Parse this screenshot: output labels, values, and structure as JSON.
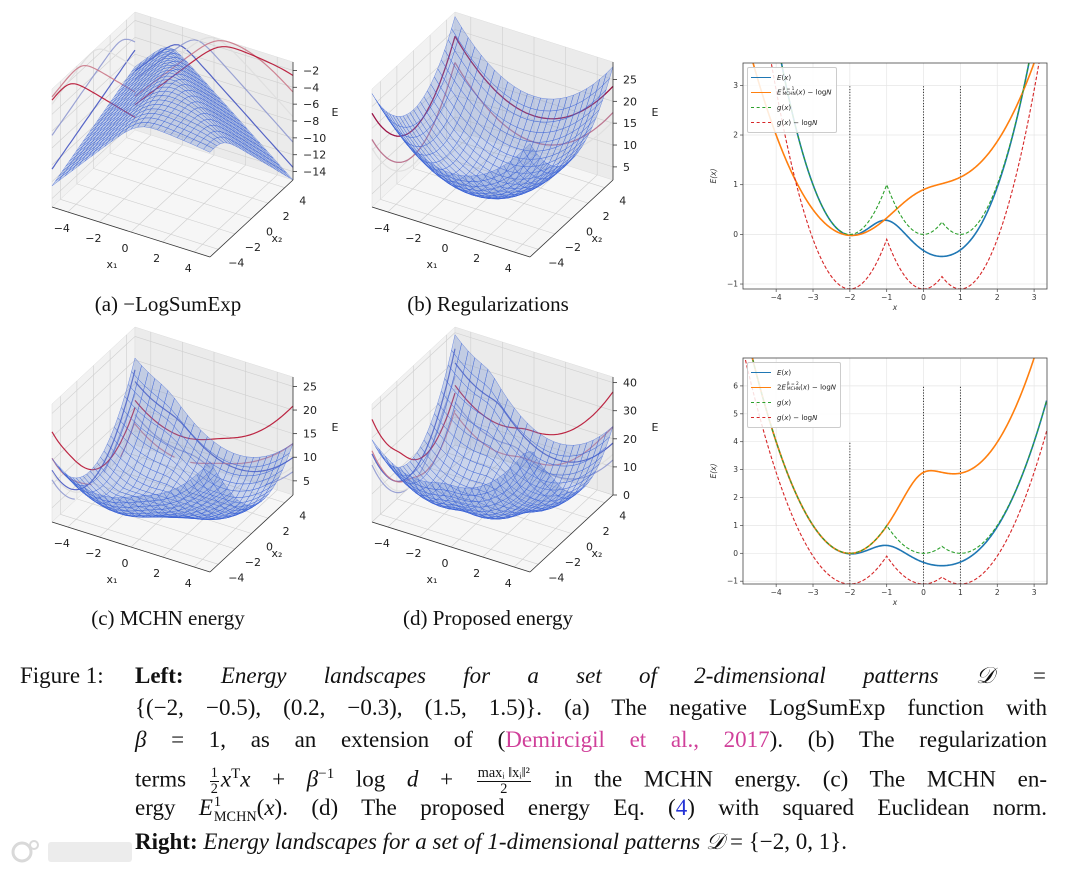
{
  "subplots": [
    {
      "label": "(a) −LogSumExp"
    },
    {
      "label": "(b) Regularizations"
    },
    {
      "label": "(c) MCHN energy"
    },
    {
      "label": "(d) Proposed energy"
    }
  ],
  "chart_data": [
    {
      "type": "surface3d",
      "id": "a",
      "title": "(a) −LogSumExp",
      "function": "neg_logsumexp",
      "patterns": [
        [
          -2,
          -0.5
        ],
        [
          0.2,
          -0.3
        ],
        [
          1.5,
          1.5
        ]
      ],
      "beta": 1,
      "xlabel": "x₁",
      "ylabel": "x₂",
      "zlabel": "E",
      "xlim": [
        -5,
        5
      ],
      "ylim": [
        -5,
        5
      ],
      "zlim": [
        -15,
        -1
      ],
      "xticks": [
        "−4",
        "−2",
        "0",
        "2",
        "4"
      ],
      "xtick_values": [
        -4,
        -2,
        0,
        2,
        4
      ],
      "yticks": [
        "−4",
        "−2",
        "0",
        "2",
        "4"
      ],
      "ytick_values": [
        -4,
        -2,
        0,
        2,
        4
      ],
      "zticks": [
        "−14",
        "−12",
        "−10",
        "−8",
        "−6",
        "−4",
        "−2"
      ],
      "ztick_values": [
        -14,
        -12,
        -10,
        -8,
        -6,
        -4,
        -2
      ]
    },
    {
      "type": "surface3d",
      "id": "b",
      "title": "(b) Regularizations",
      "function": "regularization",
      "patterns": [
        [
          -2,
          -0.5
        ],
        [
          0.2,
          -0.3
        ],
        [
          1.5,
          1.5
        ]
      ],
      "beta": 1,
      "xlabel": "x₁",
      "ylabel": "x₂",
      "zlabel": "E",
      "xlim": [
        -5,
        5
      ],
      "ylim": [
        -5,
        5
      ],
      "zlim": [
        2,
        29
      ],
      "xticks": [
        "−4",
        "−2",
        "0",
        "2",
        "4"
      ],
      "xtick_values": [
        -4,
        -2,
        0,
        2,
        4
      ],
      "yticks": [
        "−4",
        "−2",
        "0",
        "2",
        "4"
      ],
      "ytick_values": [
        -4,
        -2,
        0,
        2,
        4
      ],
      "zticks": [
        "5",
        "10",
        "15",
        "20",
        "25"
      ],
      "ztick_values": [
        5,
        10,
        15,
        20,
        25
      ]
    },
    {
      "type": "surface3d",
      "id": "c",
      "title": "(c) MCHN energy",
      "function": "mchn",
      "patterns": [
        [
          -2,
          -0.5
        ],
        [
          0.2,
          -0.3
        ],
        [
          1.5,
          1.5
        ]
      ],
      "beta": 1,
      "xlabel": "x₁",
      "ylabel": "x₂",
      "zlabel": "E",
      "xlim": [
        -5,
        5
      ],
      "ylim": [
        -5,
        5
      ],
      "zlim": [
        2,
        27
      ],
      "xticks": [
        "−4",
        "−2",
        "0",
        "2",
        "4"
      ],
      "xtick_values": [
        -4,
        -2,
        0,
        2,
        4
      ],
      "yticks": [
        "−4",
        "−2",
        "0",
        "2",
        "4"
      ],
      "ytick_values": [
        -4,
        -2,
        0,
        2,
        4
      ],
      "zticks": [
        "5",
        "10",
        "15",
        "20",
        "25"
      ],
      "ztick_values": [
        5,
        10,
        15,
        20,
        25
      ]
    },
    {
      "type": "surface3d",
      "id": "d",
      "title": "(d) Proposed energy",
      "function": "proposed",
      "patterns": [
        [
          -2,
          -0.5
        ],
        [
          0.2,
          -0.3
        ],
        [
          1.5,
          1.5
        ]
      ],
      "beta": 1,
      "xlabel": "x₁",
      "ylabel": "x₂",
      "zlabel": "E",
      "xlim": [
        -5,
        5
      ],
      "ylim": [
        -5,
        5
      ],
      "zlim": [
        0,
        42
      ],
      "xticks": [
        "−4",
        "−2",
        "0",
        "2",
        "4"
      ],
      "xtick_values": [
        -4,
        -2,
        0,
        2,
        4
      ],
      "yticks": [
        "−4",
        "−2",
        "0",
        "2",
        "4"
      ],
      "ytick_values": [
        -4,
        -2,
        0,
        2,
        4
      ],
      "zticks": [
        "0",
        "10",
        "20",
        "30",
        "40"
      ],
      "ztick_values": [
        0,
        10,
        20,
        30,
        40
      ]
    },
    {
      "type": "line",
      "id": "right-top",
      "patterns": [
        -2,
        0,
        1
      ],
      "xlabel": "x",
      "ylabel": "E(x)",
      "xlim": [
        -4.9,
        3.35
      ],
      "ylim": [
        -1.1,
        3.45
      ],
      "xticks": [
        "−4",
        "−3",
        "−2",
        "−1",
        "0",
        "1",
        "2",
        "3"
      ],
      "xtick_values": [
        -4,
        -3,
        -2,
        -1,
        0,
        1,
        2,
        3
      ],
      "yticks": [
        "−1",
        "0",
        "1",
        "2",
        "3"
      ],
      "ytick_values": [
        -1,
        0,
        1,
        2,
        3
      ],
      "grid": true,
      "legend_position": "upper-left",
      "vlines": [
        {
          "x": -2,
          "ymax": 3
        },
        {
          "x": 0,
          "ymax": 3
        },
        {
          "x": 1,
          "ymax": 3
        }
      ],
      "series": [
        {
          "name": "E(x)",
          "kind": "neg_lse_sqdist",
          "color": "#1f77b4",
          "dashed": false,
          "legend": [
            {
              "s": "i",
              "t": "E"
            },
            {
              "s": "r",
              "t": "("
            },
            {
              "s": "i",
              "t": "x"
            },
            {
              "s": "r",
              "t": ")"
            }
          ]
        },
        {
          "name": "E_MCHN^{β=1}(x) − logN",
          "kind": "mchn",
          "beta": 1,
          "scale": 1,
          "color": "#ff7f0e",
          "dashed": false,
          "legend": [
            {
              "s": "i",
              "t": "E"
            },
            {
              "s": "supsub",
              "sup": "β = 1",
              "sub": "MCHN"
            },
            {
              "s": "r",
              "t": "("
            },
            {
              "s": "i",
              "t": "x"
            },
            {
              "s": "r",
              "t": ") − log"
            },
            {
              "s": "i",
              "t": "N"
            }
          ]
        },
        {
          "name": "g(x)",
          "kind": "min_sqdist",
          "color": "#2ca02c",
          "dashed": true,
          "legend": [
            {
              "s": "i",
              "t": "g"
            },
            {
              "s": "r",
              "t": "("
            },
            {
              "s": "i",
              "t": "x"
            },
            {
              "s": "r",
              "t": ")"
            }
          ]
        },
        {
          "name": "g(x) − logN",
          "kind": "min_sqdist_minus_logN",
          "color": "#d62728",
          "dashed": true,
          "legend": [
            {
              "s": "i",
              "t": "g"
            },
            {
              "s": "r",
              "t": "("
            },
            {
              "s": "i",
              "t": "x"
            },
            {
              "s": "r",
              "t": ") − log"
            },
            {
              "s": "i",
              "t": "N"
            }
          ]
        }
      ]
    },
    {
      "type": "line",
      "id": "right-bottom",
      "patterns": [
        -2,
        0,
        1
      ],
      "xlabel": "x",
      "ylabel": "E(x)",
      "xlim": [
        -4.9,
        3.35
      ],
      "ylim": [
        -1.1,
        7.0
      ],
      "xticks": [
        "−4",
        "−3",
        "−2",
        "−1",
        "0",
        "1",
        "2",
        "3"
      ],
      "xtick_values": [
        -4,
        -3,
        -2,
        -1,
        0,
        1,
        2,
        3
      ],
      "yticks": [
        "−1",
        "0",
        "1",
        "2",
        "3",
        "4",
        "5",
        "6"
      ],
      "ytick_values": [
        -1,
        0,
        1,
        2,
        3,
        4,
        5,
        6
      ],
      "grid": true,
      "legend_position": "upper-left",
      "vlines": [
        {
          "x": -2,
          "ymax": 4
        },
        {
          "x": 0,
          "ymax": 6
        },
        {
          "x": 1,
          "ymax": 6
        }
      ],
      "series": [
        {
          "name": "E(x)",
          "kind": "neg_lse_sqdist",
          "color": "#1f77b4",
          "dashed": false,
          "legend": [
            {
              "s": "i",
              "t": "E"
            },
            {
              "s": "r",
              "t": "("
            },
            {
              "s": "i",
              "t": "x"
            },
            {
              "s": "r",
              "t": ")"
            }
          ]
        },
        {
          "name": "2E_MCHN^{β=2}(x) − logN",
          "kind": "mchn",
          "beta": 2,
          "scale": 2,
          "color": "#ff7f0e",
          "dashed": false,
          "legend": [
            {
              "s": "r",
              "t": "2"
            },
            {
              "s": "i",
              "t": "E"
            },
            {
              "s": "supsub",
              "sup": "β = 2",
              "sub": "MCHN"
            },
            {
              "s": "r",
              "t": "("
            },
            {
              "s": "i",
              "t": "x"
            },
            {
              "s": "r",
              "t": ") − log"
            },
            {
              "s": "i",
              "t": "N"
            }
          ]
        },
        {
          "name": "g(x)",
          "kind": "min_sqdist",
          "color": "#2ca02c",
          "dashed": true,
          "legend": [
            {
              "s": "i",
              "t": "g"
            },
            {
              "s": "r",
              "t": "("
            },
            {
              "s": "i",
              "t": "x"
            },
            {
              "s": "r",
              "t": ")"
            }
          ]
        },
        {
          "name": "g(x) − logN",
          "kind": "min_sqdist_minus_logN",
          "color": "#d62728",
          "dashed": true,
          "legend": [
            {
              "s": "i",
              "t": "g"
            },
            {
              "s": "r",
              "t": "("
            },
            {
              "s": "i",
              "t": "x"
            },
            {
              "s": "r",
              "t": ") − log"
            },
            {
              "s": "i",
              "t": "N"
            }
          ]
        }
      ]
    }
  ],
  "caption": {
    "figure_label": "Figure 1:",
    "lines": [
      [
        {
          "s": "b",
          "t": "Left: "
        },
        {
          "s": "i",
          "t": "Energy landscapes for a set of 2-dimensional patterns 𝒟 ="
        }
      ],
      [
        {
          "s": "r",
          "t": "{(−2, −0.5), (0.2, −0.3), (1.5, 1.5)}. (a) The negative LogSumExp function with"
        }
      ],
      [
        {
          "s": "i",
          "t": "β"
        },
        {
          "s": "r",
          "t": " = 1, as an extension of ("
        },
        {
          "s": "pink",
          "t": "Demircigil et al., 2017"
        },
        {
          "s": "r",
          "t": "). (b) The regularization"
        }
      ],
      [
        {
          "s": "r",
          "t": "terms "
        },
        {
          "s": "frac",
          "n": "1",
          "d": "2"
        },
        {
          "s": "i",
          "t": "x"
        },
        {
          "s": "sup",
          "t": "T"
        },
        {
          "s": "i",
          "t": "x"
        },
        {
          "s": "r",
          "t": " + "
        },
        {
          "s": "i",
          "t": "β"
        },
        {
          "s": "sup",
          "t": "−1"
        },
        {
          "s": "r",
          "t": " log "
        },
        {
          "s": "i",
          "t": "d"
        },
        {
          "s": "r",
          "t": " + "
        },
        {
          "s": "frac",
          "n": "maxᵢ ‖xᵢ‖²",
          "d": "2"
        },
        {
          "s": "r",
          "t": " in the MCHN energy. (c) The MCHN en-"
        }
      ],
      [
        {
          "s": "r",
          "t": "ergy "
        },
        {
          "s": "i",
          "t": "E"
        },
        {
          "s": "supsub",
          "sup": "1",
          "sub": "MCHN"
        },
        {
          "s": "r",
          "t": "("
        },
        {
          "s": "i",
          "t": "x"
        },
        {
          "s": "r",
          "t": "). (d) The proposed energy Eq. ("
        },
        {
          "s": "blue",
          "t": "4"
        },
        {
          "s": "r",
          "t": ") with squared Euclidean norm."
        }
      ],
      [
        {
          "s": "b",
          "t": "Right: "
        },
        {
          "s": "i",
          "t": "Energy landscapes for a set of 1-dimensional patterns 𝒟"
        },
        {
          "s": "r",
          "t": " = {−2, 0, 1}."
        }
      ]
    ]
  },
  "watermark": "大数跨境"
}
